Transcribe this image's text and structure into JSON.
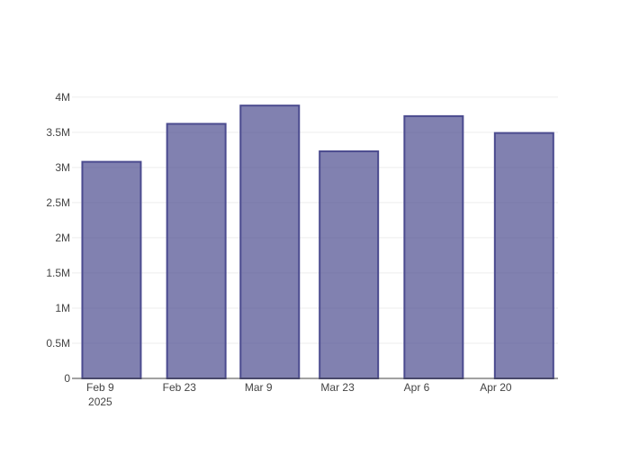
{
  "chart_data": {
    "type": "bar",
    "x": [
      "2025-02-11",
      "2025-02-26",
      "2025-03-11",
      "2025-03-25",
      "2025-04-09",
      "2025-04-25"
    ],
    "values": [
      3080000,
      3620000,
      3880000,
      3230000,
      3730000,
      3490000
    ],
    "color": "#4b4b8f",
    "xlim": [
      "2025-02-04",
      "2025-05-01"
    ],
    "xticks": [
      {
        "value": "2025-02-09",
        "label": "Feb 9\n2025"
      },
      {
        "value": "2025-02-23",
        "label": "Feb 23"
      },
      {
        "value": "2025-03-09",
        "label": "Mar 9"
      },
      {
        "value": "2025-03-23",
        "label": "Mar 23"
      },
      {
        "value": "2025-04-06",
        "label": "Apr 6"
      },
      {
        "value": "2025-04-20",
        "label": "Apr 20"
      }
    ],
    "ylim": [
      0,
      4100000
    ],
    "yticks": [
      0,
      {
        "value": 500000,
        "label": "0.5M"
      },
      {
        "value": 1000000,
        "label": "1M"
      },
      {
        "value": 1500000,
        "label": "1.5M"
      },
      {
        "value": 2000000,
        "label": "2M"
      },
      {
        "value": 2500000,
        "label": "2.5M"
      },
      {
        "value": 3000000,
        "label": "3M"
      },
      {
        "value": 3500000,
        "label": "3.5M"
      },
      {
        "value": 4000000,
        "label": "4M"
      }
    ],
    "grid": true
  }
}
